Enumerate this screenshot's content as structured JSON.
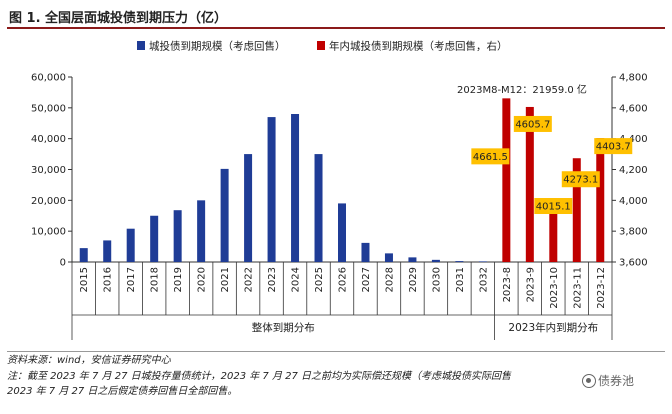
{
  "page": {
    "title": "图 1. 全国层面城投债到期压力（亿）"
  },
  "chart_data": {
    "type": "bar",
    "categories": [
      "2015",
      "2016",
      "2017",
      "2018",
      "2019",
      "2020",
      "2021",
      "2022",
      "2023",
      "2024",
      "2025",
      "2026",
      "2027",
      "2028",
      "2029",
      "2030",
      "2031",
      "2032",
      "2023-8",
      "2023-9",
      "2023-10",
      "2023-11",
      "2023-12"
    ],
    "series": [
      {
        "name": "城投债到期规模（考虑回售）",
        "axis": "left",
        "color": "#1f3c96",
        "values": [
          4500,
          7000,
          10800,
          15000,
          16800,
          20000,
          30200,
          35000,
          47000,
          48000,
          35000,
          19000,
          6200,
          2800,
          1500,
          700,
          300,
          200,
          null,
          null,
          null,
          null,
          null
        ]
      },
      {
        "name": "年内城投债到期规模（考虑回售，右）",
        "axis": "right",
        "color": "#c00000",
        "values": [
          null,
          null,
          null,
          null,
          null,
          null,
          null,
          null,
          null,
          null,
          null,
          null,
          null,
          null,
          null,
          null,
          null,
          null,
          4661.5,
          4605.7,
          4015.1,
          4273.1,
          4403.7
        ],
        "data_labels": [
          "4661.5",
          "4605.7",
          "4015.1",
          "4273.1",
          "4403.7"
        ]
      }
    ],
    "y_left": {
      "min": 0,
      "max": 60000,
      "ticks": [
        "0",
        "10,000",
        "20,000",
        "30,000",
        "40,000",
        "50,000",
        "60,000"
      ]
    },
    "y_right": {
      "min": 3600,
      "max": 4800,
      "ticks": [
        "3,600",
        "3,800",
        "4,000",
        "4,200",
        "4,400",
        "4,600",
        "4,800"
      ]
    },
    "annotation": "2023M8-M12：21959.0 亿",
    "group_labels": [
      "整体到期分布",
      "2023年内到期分布"
    ],
    "legend_position": "top",
    "label_box_color": "#ffc000"
  },
  "footer": {
    "source": "资料来源：wind，安信证券研究中心",
    "note1": "注：截至 2023 年 7 月 27 日城投存量债统计，2023 年 7 月 27 日之前均为实际偿还规模（考虑城投债实际回售",
    "note2": "2023 年 7 月 27 日之后假定债券回售日全部回售。",
    "watermark": "债券池"
  }
}
